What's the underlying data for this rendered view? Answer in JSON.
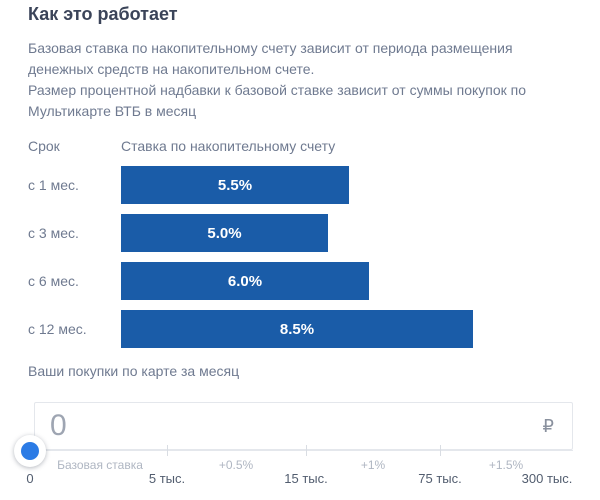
{
  "page": {
    "title": "Как это работает",
    "description_paragraphs": [
      "Базовая ставка по накопительному счету зависит от периода размещения денежных средств на накопительном счете.",
      "Размер процентной надбавки к базовой ставке зависит от суммы покупок по Мультикарте ВТБ в месяц"
    ]
  },
  "chart_data": {
    "type": "bar",
    "orientation": "horizontal",
    "title": "Ставка по накопительному счету",
    "column_headers": {
      "term": "Срок",
      "rate": "Ставка по накопительному счету"
    },
    "categories": [
      "с 1 мес.",
      "с 3 мес.",
      "с 6 мес.",
      "с 12 мес."
    ],
    "values": [
      5.5,
      5.0,
      6.0,
      8.5
    ],
    "value_labels": [
      "5.5%",
      "5.0%",
      "6.0%",
      "8.5%"
    ],
    "xlim": [
      0,
      8.5
    ],
    "bar_color": "#1a5ca8"
  },
  "purchases": {
    "label": "Ваши покупки по карте за месяц",
    "amount_value": "0",
    "currency_symbol": "₽",
    "slider": {
      "value": "0",
      "tick_labels": [
        "0",
        "5 тыс.",
        "15 тыс.",
        "75 тыс.",
        "300 тыс."
      ],
      "segment_labels": [
        "Базовая ставка",
        "+0.5%",
        "+1%",
        "+1.5%"
      ],
      "handle_color": "#2b7be5"
    }
  },
  "colors": {
    "bar_blue": "#1a5ca8",
    "handle_blue": "#2b7be5",
    "title_text": "#3b4459",
    "body_text": "#6f7a90",
    "border_gray": "#e4e7ec"
  }
}
